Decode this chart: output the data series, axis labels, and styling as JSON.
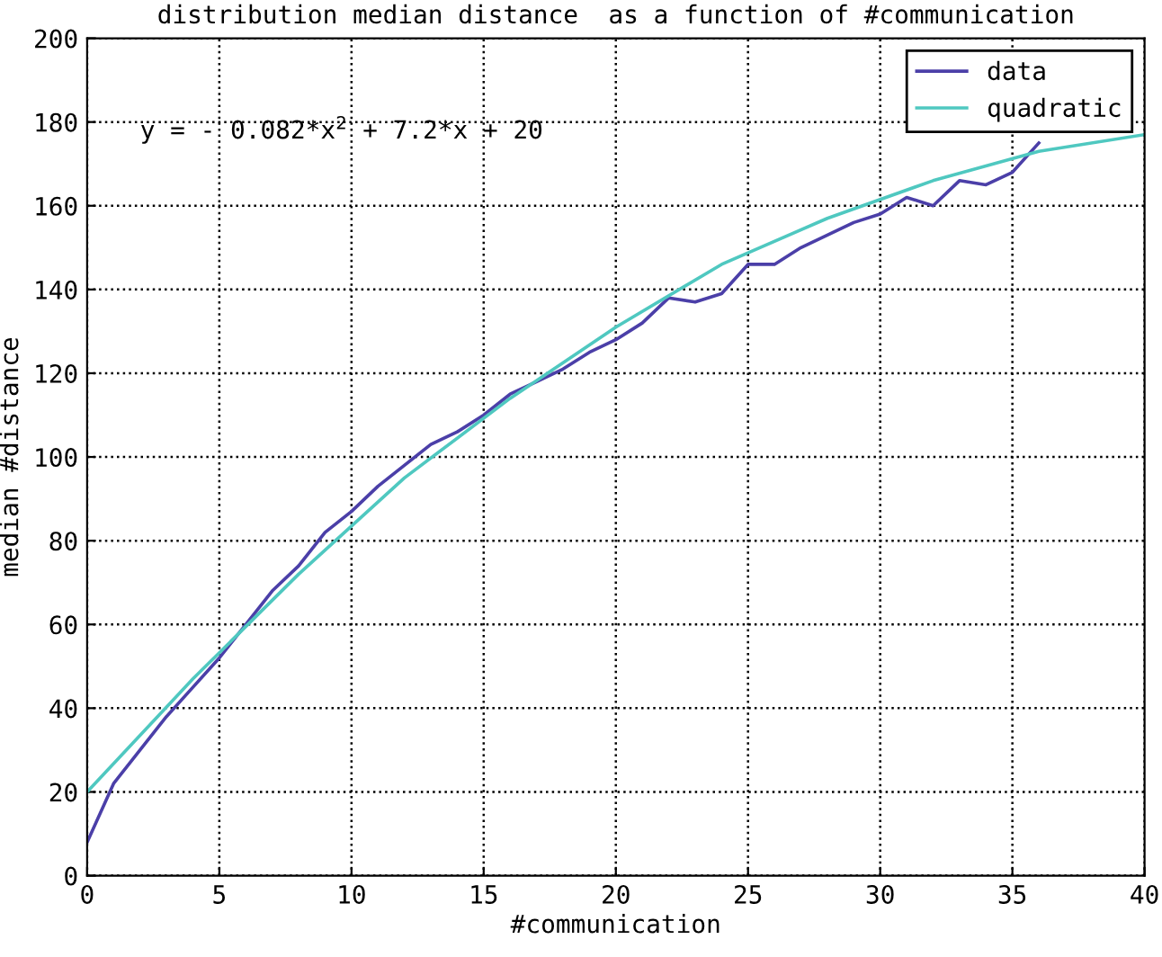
{
  "chart_data": {
    "type": "line",
    "title": "distribution median distance  as a function of #communication",
    "xlabel": "#communication",
    "ylabel": "median #distance",
    "annotations": [
      "y = - 0.082*x$^{2}$ + 7.2*x + 20"
    ],
    "series": [
      {
        "name": "data",
        "color": "#4b3fa8",
        "x": [
          0,
          1,
          2,
          3,
          4,
          5,
          6,
          7,
          8,
          9,
          10,
          11,
          12,
          13,
          14,
          15,
          16,
          17,
          18,
          19,
          20,
          21,
          22,
          23,
          24,
          25,
          26,
          27,
          28,
          29,
          30,
          31,
          32,
          33,
          34,
          35,
          36
        ],
        "values": [
          8,
          22,
          30,
          38,
          45,
          52,
          60,
          68,
          74,
          82,
          87,
          93,
          98,
          103,
          106,
          110,
          115,
          118,
          121,
          125,
          128,
          132,
          138,
          137,
          139,
          146,
          146,
          150,
          153,
          156,
          158,
          162,
          160,
          166,
          165,
          168,
          175
        ]
      },
      {
        "name": "quadratic",
        "color": "#4fc8c0",
        "x": [
          0,
          4,
          8,
          12,
          16,
          20,
          24,
          28,
          32,
          36,
          40
        ],
        "values": [
          20,
          47,
          72,
          95,
          114,
          131,
          146,
          157,
          166,
          173,
          177
        ]
      }
    ],
    "xlim": [
      0,
      40
    ],
    "xticks": [
      0,
      5,
      10,
      15,
      20,
      25,
      30,
      35,
      40
    ],
    "ylim": [
      0,
      200
    ],
    "yticks": [
      0,
      20,
      40,
      60,
      80,
      100,
      120,
      140,
      160,
      180,
      200
    ],
    "grid": true,
    "legend": "top right",
    "line_style": "solid",
    "marker": "none"
  }
}
